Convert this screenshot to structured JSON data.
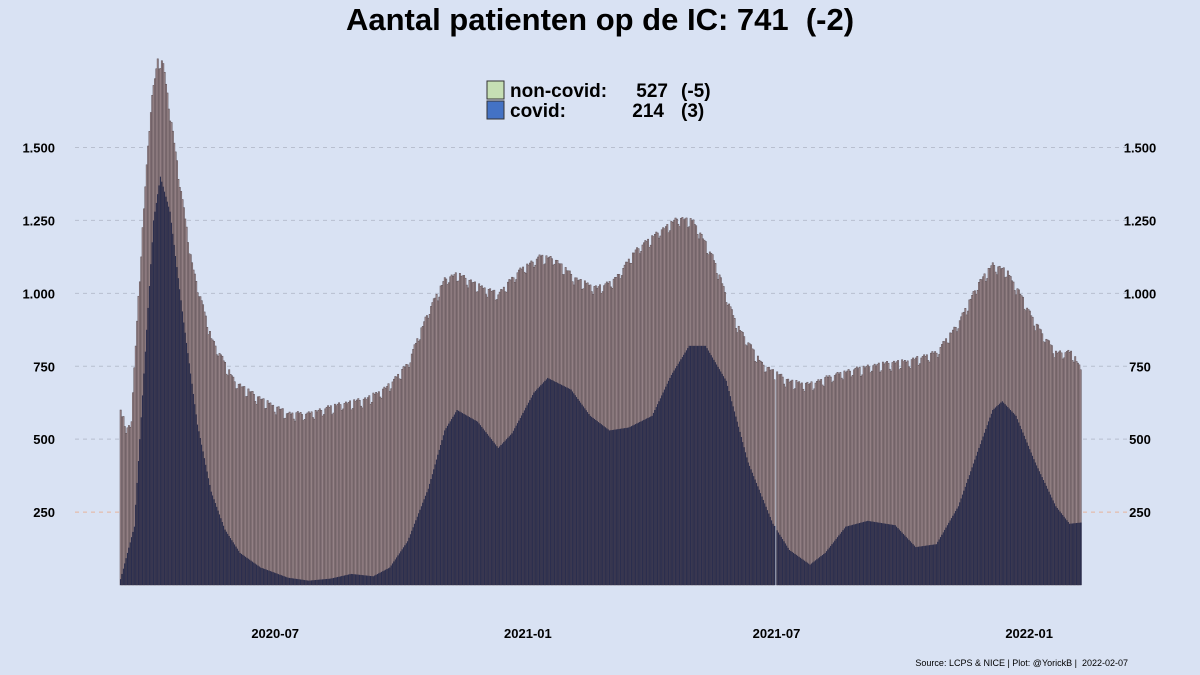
{
  "title": "Aantal patienten op de IC: 741  (-2)",
  "source": "Source: LCPS & NICE | Plot: @YorickB |  2022-02-07",
  "colors": {
    "background": "#d9e2f3",
    "noncovid_fill": "#9e8a8e",
    "noncovid_stroke": "#5a4d52",
    "covid_fill": "#2b2e4e",
    "legend_noncovid": "#c6dfb4",
    "legend_covid": "#4472c4",
    "grid": "#b8bfcf",
    "grid_250": "#e8b49a"
  },
  "legend": {
    "items": [
      {
        "series": "non-covid",
        "label": "non-covid:",
        "value": "527",
        "change": "(-5)"
      },
      {
        "series": "covid",
        "label": "covid:",
        "value": "214",
        "change": "(3)"
      }
    ]
  },
  "chart_data": {
    "type": "area",
    "stacked": true,
    "x_start": "2020-03-10",
    "x_end": "2022-02-07",
    "ylim": [
      0,
      1800
    ],
    "y_ticks": [
      250,
      500,
      750,
      1000,
      1250,
      1500
    ],
    "y_tick_labels": [
      "250",
      "500",
      "750",
      "1.000",
      "1.250",
      "1.500"
    ],
    "x_ticks": [
      "2020-07-01",
      "2021-01-01",
      "2021-07-01",
      "2022-01-01"
    ],
    "x_tick_labels": [
      "2020-07",
      "2021-01",
      "2021-07",
      "2022-01"
    ],
    "grid": "horizontal dashed",
    "legend_position": "top-center",
    "gap_date": "2021-06-30",
    "series": [
      {
        "name": "covid",
        "points": [
          [
            "2020-03-10",
            20
          ],
          [
            "2020-03-20",
            200
          ],
          [
            "2020-03-28",
            800
          ],
          [
            "2020-04-03",
            1250
          ],
          [
            "2020-04-08",
            1400
          ],
          [
            "2020-04-15",
            1280
          ],
          [
            "2020-04-25",
            900
          ],
          [
            "2020-05-05",
            550
          ],
          [
            "2020-05-15",
            320
          ],
          [
            "2020-05-25",
            190
          ],
          [
            "2020-06-05",
            110
          ],
          [
            "2020-06-20",
            60
          ],
          [
            "2020-07-10",
            25
          ],
          [
            "2020-07-25",
            15
          ],
          [
            "2020-08-10",
            22
          ],
          [
            "2020-08-25",
            38
          ],
          [
            "2020-09-10",
            30
          ],
          [
            "2020-09-22",
            60
          ],
          [
            "2020-10-05",
            150
          ],
          [
            "2020-10-20",
            330
          ],
          [
            "2020-11-01",
            530
          ],
          [
            "2020-11-10",
            600
          ],
          [
            "2020-11-25",
            560
          ],
          [
            "2020-12-10",
            470
          ],
          [
            "2020-12-20",
            520
          ],
          [
            "2021-01-05",
            660
          ],
          [
            "2021-01-15",
            710
          ],
          [
            "2021-02-01",
            670
          ],
          [
            "2021-02-15",
            580
          ],
          [
            "2021-03-01",
            530
          ],
          [
            "2021-03-15",
            540
          ],
          [
            "2021-04-01",
            580
          ],
          [
            "2021-04-15",
            720
          ],
          [
            "2021-04-28",
            820
          ],
          [
            "2021-05-10",
            820
          ],
          [
            "2021-05-25",
            700
          ],
          [
            "2021-06-10",
            420
          ],
          [
            "2021-06-28",
            210
          ],
          [
            "2021-07-10",
            120
          ],
          [
            "2021-07-25",
            70
          ],
          [
            "2021-08-05",
            110
          ],
          [
            "2021-08-20",
            200
          ],
          [
            "2021-09-05",
            220
          ],
          [
            "2021-09-25",
            205
          ],
          [
            "2021-10-10",
            130
          ],
          [
            "2021-10-25",
            140
          ],
          [
            "2021-11-10",
            270
          ],
          [
            "2021-11-25",
            470
          ],
          [
            "2021-12-05",
            600
          ],
          [
            "2021-12-12",
            630
          ],
          [
            "2021-12-22",
            580
          ],
          [
            "2022-01-05",
            420
          ],
          [
            "2022-01-20",
            270
          ],
          [
            "2022-01-30",
            210
          ],
          [
            "2022-02-07",
            214
          ]
        ]
      },
      {
        "name": "total",
        "points": [
          [
            "2020-03-10",
            630
          ],
          [
            "2020-03-14",
            520
          ],
          [
            "2020-03-18",
            580
          ],
          [
            "2020-03-25",
            1150
          ],
          [
            "2020-04-01",
            1650
          ],
          [
            "2020-04-06",
            1800
          ],
          [
            "2020-04-10",
            1790
          ],
          [
            "2020-04-20",
            1450
          ],
          [
            "2020-05-01",
            1100
          ],
          [
            "2020-05-15",
            850
          ],
          [
            "2020-06-01",
            700
          ],
          [
            "2020-06-20",
            640
          ],
          [
            "2020-07-10",
            590
          ],
          [
            "2020-07-25",
            590
          ],
          [
            "2020-08-15",
            620
          ],
          [
            "2020-09-05",
            640
          ],
          [
            "2020-09-20",
            680
          ],
          [
            "2020-10-05",
            760
          ],
          [
            "2020-10-20",
            940
          ],
          [
            "2020-11-01",
            1050
          ],
          [
            "2020-11-10",
            1070
          ],
          [
            "2020-11-25",
            1030
          ],
          [
            "2020-12-10",
            1000
          ],
          [
            "2020-12-25",
            1080
          ],
          [
            "2021-01-10",
            1130
          ],
          [
            "2021-01-20",
            1120
          ],
          [
            "2021-02-05",
            1050
          ],
          [
            "2021-02-20",
            1020
          ],
          [
            "2021-03-05",
            1050
          ],
          [
            "2021-03-20",
            1150
          ],
          [
            "2021-04-05",
            1210
          ],
          [
            "2021-04-20",
            1260
          ],
          [
            "2021-05-01",
            1250
          ],
          [
            "2021-05-15",
            1130
          ],
          [
            "2021-06-01",
            900
          ],
          [
            "2021-06-20",
            760
          ],
          [
            "2021-07-10",
            700
          ],
          [
            "2021-07-25",
            690
          ],
          [
            "2021-08-10",
            720
          ],
          [
            "2021-08-25",
            740
          ],
          [
            "2021-09-15",
            760
          ],
          [
            "2021-10-05",
            770
          ],
          [
            "2021-10-25",
            800
          ],
          [
            "2021-11-10",
            900
          ],
          [
            "2021-11-25",
            1040
          ],
          [
            "2021-12-05",
            1100
          ],
          [
            "2021-12-15",
            1080
          ],
          [
            "2021-12-25",
            1000
          ],
          [
            "2022-01-05",
            900
          ],
          [
            "2022-01-20",
            800
          ],
          [
            "2022-02-01",
            800
          ],
          [
            "2022-02-07",
            741
          ]
        ]
      }
    ]
  }
}
